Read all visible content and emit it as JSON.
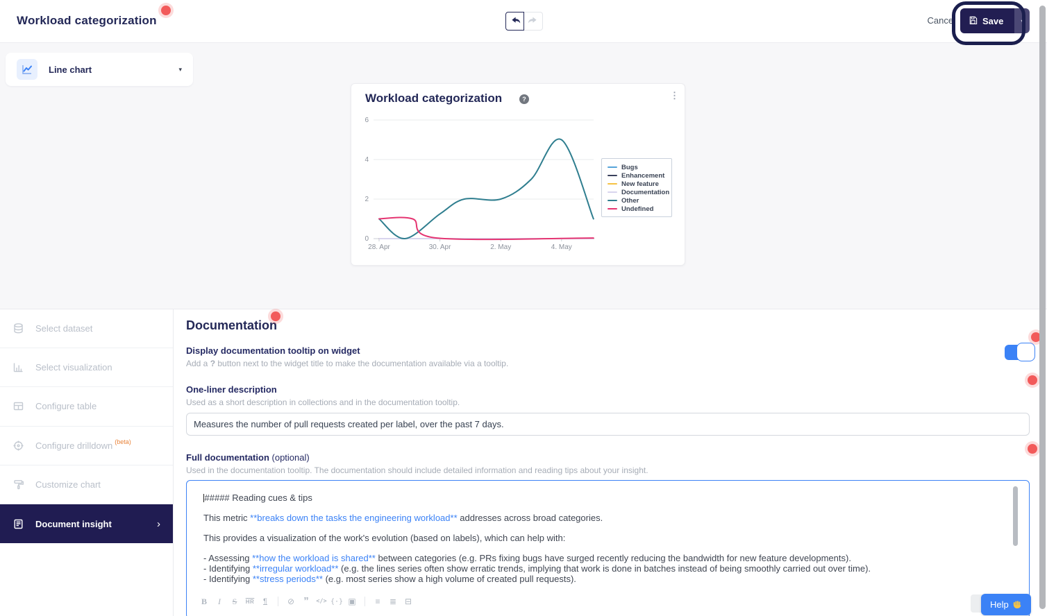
{
  "app": {
    "accent_blue": "#3b82f6",
    "brand_navy": "#232857",
    "annotation_red": "#f25a5a"
  },
  "header": {
    "title": "Workload categorization",
    "cancel_label": "Cancel",
    "save_label": "Save",
    "save_menu_caret": "▾"
  },
  "chart_type_selector": {
    "label": "Line chart",
    "caret": "▾"
  },
  "widget": {
    "title": "Workload categorization",
    "help_icon": "?",
    "menu_icon": "⋮"
  },
  "chart_data": {
    "type": "line",
    "title": "Workload categorization",
    "x_axis": {
      "tick_labels": [
        "28. Apr",
        "30. Apr",
        "2. May",
        "4. May"
      ],
      "tick_days": [
        0,
        2,
        4,
        6
      ],
      "range_days": [
        -0.2,
        7.05
      ]
    },
    "y_axis": {
      "ticks": [
        0,
        2,
        4,
        6
      ],
      "range": [
        0,
        6
      ]
    },
    "grid": true,
    "legend_position": "right",
    "series": [
      {
        "name": "Bugs",
        "color": "#55a3d9",
        "points": [
          [
            0,
            0
          ],
          [
            7.05,
            0
          ]
        ]
      },
      {
        "name": "Enhancement",
        "color": "#39405c",
        "points": [
          [
            0,
            0
          ],
          [
            7.05,
            0
          ]
        ]
      },
      {
        "name": "New feature",
        "color": "#f5c242",
        "points": [
          [
            0,
            0
          ],
          [
            7.05,
            0
          ]
        ]
      },
      {
        "name": "Documentation",
        "color": "#d8d5ee",
        "points": [
          [
            0,
            0
          ],
          [
            7.05,
            0
          ]
        ]
      },
      {
        "name": "Other",
        "color": "#2f7e8f",
        "points": [
          [
            0,
            1
          ],
          [
            0.85,
            0
          ],
          [
            2,
            1.25
          ],
          [
            2.8,
            2
          ],
          [
            4,
            2
          ],
          [
            5,
            3
          ],
          [
            6,
            5
          ],
          [
            7.05,
            1
          ]
        ]
      },
      {
        "name": "Undefined",
        "color": "#e53471",
        "points": [
          [
            0,
            1
          ],
          [
            1.1,
            1
          ],
          [
            1.9,
            0.03
          ],
          [
            7.05,
            0.03
          ]
        ]
      }
    ]
  },
  "sidebar": {
    "items": [
      {
        "label": "Select dataset",
        "icon": "database-icon",
        "state": "disabled"
      },
      {
        "label": "Select visualization",
        "icon": "bar-chart-icon",
        "state": "disabled"
      },
      {
        "label": "Configure table",
        "icon": "table-icon",
        "state": "disabled"
      },
      {
        "label": "Configure drilldown",
        "badge": "(beta)",
        "icon": "target-icon",
        "state": "disabled"
      },
      {
        "label": "Customize chart",
        "icon": "paint-roller-icon",
        "state": "disabled"
      },
      {
        "label": "Document insight",
        "icon": "document-icon",
        "state": "active",
        "chevron": "›"
      }
    ]
  },
  "main": {
    "heading": "Documentation",
    "tooltip_toggle": {
      "label": "Display documentation tooltip on widget",
      "help_prefix": "Add a ",
      "help_bold": "?",
      "help_suffix": " button next to the widget title to make the documentation available via a tooltip.",
      "enabled": true
    },
    "one_liner": {
      "label": "One-liner description",
      "help": "Used as a short description in collections and in the documentation tooltip.",
      "value": "Measures the number of pull requests created per label, over the past 7 days."
    },
    "full_doc": {
      "label": "Full documentation",
      "optional": "(optional)",
      "help": "Used in the documentation tooltip. The documentation should include detailed information and reading tips about your insight.",
      "paragraphs": [
        {
          "segments": [
            {
              "text": "##### Reading cues & tips"
            }
          ]
        },
        {
          "segments": [
            {
              "text": "This metric "
            },
            {
              "text": "**breaks down the tasks the engineering workload**",
              "highlight": true
            },
            {
              "text": " addresses across broad categories."
            }
          ]
        },
        {
          "segments": [
            {
              "text": "This provides a visualization of the work's evolution (based on labels), which can help with:"
            }
          ]
        },
        {
          "tight": true,
          "segments": [
            {
              "text": "- Assessing "
            },
            {
              "text": "**how the workload is shared**",
              "highlight": true
            },
            {
              "text": " between categories (e.g. PRs fixing bugs have surged recently reducing the bandwidth for new feature developments)."
            }
          ]
        },
        {
          "tight": true,
          "segments": [
            {
              "text": "- Identifying "
            },
            {
              "text": "**irregular workload**",
              "highlight": true
            },
            {
              "text": " (e.g. the lines series often show erratic trends, implying that work is done in batches instead of being smoothly carried out over time)."
            }
          ]
        },
        {
          "tight": true,
          "segments": [
            {
              "text": "- Identifying "
            },
            {
              "text": "**stress periods**",
              "highlight": true
            },
            {
              "text": " (e.g. most series show a high volume of created pull requests)."
            }
          ]
        }
      ],
      "toolbar_groups": [
        [
          {
            "name": "bold",
            "glyph": "B"
          },
          {
            "name": "italic",
            "glyph": "I"
          },
          {
            "name": "strikethrough",
            "glyph": "S"
          },
          {
            "name": "horizontal-rule",
            "glyph": "HR"
          },
          {
            "name": "heading",
            "glyph": "¶"
          }
        ],
        [
          {
            "name": "link",
            "glyph": "⊘"
          },
          {
            "name": "quote",
            "glyph": "”"
          },
          {
            "name": "inline-code",
            "glyph": "</>"
          },
          {
            "name": "code-block",
            "glyph": "{·}"
          },
          {
            "name": "image",
            "glyph": "▣"
          }
        ],
        [
          {
            "name": "bullet-list",
            "glyph": "≡"
          },
          {
            "name": "numbered-list",
            "glyph": "≣"
          },
          {
            "name": "task-list",
            "glyph": "⊟"
          }
        ]
      ]
    }
  },
  "help_button": {
    "label": "Help",
    "icon": "wave-hand-icon"
  }
}
